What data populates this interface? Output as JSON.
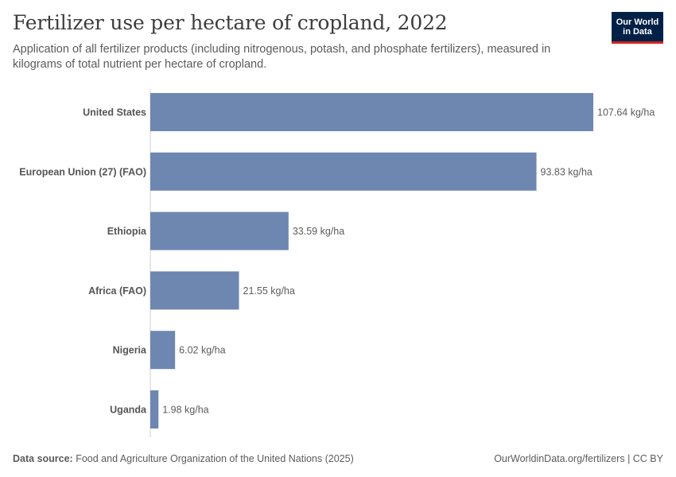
{
  "header": {
    "title": "Fertilizer use per hectare of cropland, 2022",
    "subtitle": "Application of all fertilizer products (including nitrogenous, potash, and phosphate fertilizers), measured in kilograms of total nutrient per hectare of cropland.",
    "logo_line1": "Our World",
    "logo_line2": "in Data"
  },
  "chart_data": {
    "type": "bar",
    "orientation": "horizontal",
    "categories": [
      "United States",
      "European Union (27) (FAO)",
      "Ethiopia",
      "Africa (FAO)",
      "Nigeria",
      "Uganda"
    ],
    "values": [
      107.64,
      93.83,
      33.59,
      21.55,
      6.02,
      1.98
    ],
    "value_labels": [
      "107.64 kg/ha",
      "93.83 kg/ha",
      "33.59 kg/ha",
      "21.55 kg/ha",
      "6.02 kg/ha",
      "1.98 kg/ha"
    ],
    "unit": "kg/ha",
    "bar_color": "#6d87b1",
    "xlim": [
      0,
      107.64
    ]
  },
  "footer": {
    "source_label": "Data source:",
    "source_text": "Food and Agriculture Organization of the United Nations (2025)",
    "url_license": "OurWorldinData.org/fertilizers | CC BY"
  }
}
